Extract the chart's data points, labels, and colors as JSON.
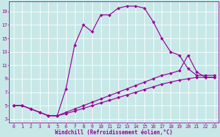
{
  "xlabel": "Windchill (Refroidissement éolien,°C)",
  "bg_color": "#c8e8e8",
  "grid_color": "#ffffff",
  "line_color": "#990099",
  "xlim": [
    -0.5,
    23.5
  ],
  "ylim": [
    2.5,
    20.5
  ],
  "yticks": [
    3,
    5,
    7,
    9,
    11,
    13,
    15,
    17,
    19
  ],
  "xticks": [
    0,
    1,
    2,
    3,
    4,
    5,
    6,
    7,
    8,
    9,
    10,
    11,
    12,
    13,
    14,
    15,
    16,
    17,
    18,
    19,
    20,
    21,
    22,
    23
  ],
  "line1_x": [
    0,
    1,
    2,
    3,
    4,
    5,
    6,
    7,
    8,
    9,
    10,
    11,
    12,
    13,
    14,
    15,
    16,
    17,
    18,
    19,
    20,
    21,
    22,
    23
  ],
  "line1_y": [
    5,
    5,
    4.5,
    4,
    3.5,
    3.5,
    7.5,
    14,
    17,
    16,
    18.5,
    18.5,
    19.5,
    19.8,
    19.8,
    19.5,
    17.5,
    15,
    13,
    12.5,
    10.5,
    9.5,
    9.5,
    9.5
  ],
  "line2_x": [
    0,
    1,
    2,
    3,
    4,
    5,
    6,
    7,
    8,
    9,
    10,
    11,
    12,
    13,
    14,
    15,
    16,
    17,
    18,
    19,
    20,
    21,
    22,
    23
  ],
  "line2_y": [
    5,
    5,
    4.5,
    4,
    3.5,
    3.5,
    4,
    4.5,
    5,
    5.5,
    6,
    6.5,
    7,
    7.5,
    8,
    8.5,
    9,
    9.5,
    9.8,
    10.2,
    12.5,
    10,
    9.2,
    9.2
  ],
  "line3_x": [
    0,
    1,
    2,
    3,
    4,
    5,
    6,
    7,
    8,
    9,
    10,
    11,
    12,
    13,
    14,
    15,
    16,
    17,
    18,
    19,
    20,
    21,
    22,
    23
  ],
  "line3_y": [
    5,
    5,
    4.5,
    4,
    3.5,
    3.5,
    3.8,
    4.2,
    4.6,
    5.0,
    5.4,
    5.8,
    6.2,
    6.6,
    7.0,
    7.4,
    7.8,
    8.2,
    8.5,
    8.8,
    9.0,
    9.2,
    9.2,
    9.2
  ],
  "marker_size": 2.5,
  "line_width": 0.9,
  "xlabel_fontsize": 5.5,
  "tick_fontsize": 5.0
}
